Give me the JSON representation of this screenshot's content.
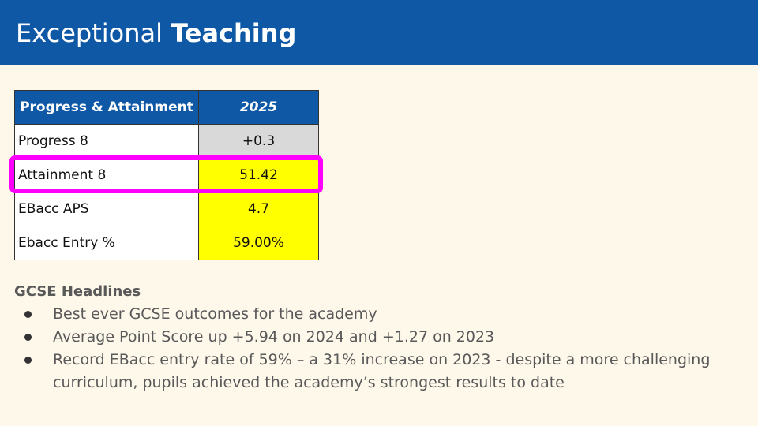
{
  "header": {
    "title_light": "Exceptional",
    "title_bold": "Teaching",
    "background": "#0f58a6"
  },
  "table": {
    "headers": [
      "Progress & Attainment",
      "2025"
    ],
    "rows": [
      {
        "label": "Progress 8",
        "value": "+0.3",
        "fill": "#d9d9d9"
      },
      {
        "label": "Attainment 8",
        "value": "51.42",
        "fill": "#ffff00"
      },
      {
        "label": "EBacc APS",
        "value": "4.7",
        "fill": "#ffff00"
      },
      {
        "label": "Ebacc Entry %",
        "value": "59.00%",
        "fill": "#ffff00"
      }
    ],
    "highlight_color": "#ff00ff"
  },
  "headlines": {
    "title": "GCSE Headlines",
    "bullets": [
      "Best ever GCSE outcomes for the academy",
      "Average Point Score up +5.94 on 2024 and +1.27 on 2023",
      "Record EBacc entry rate of 59% – a 31% increase on 2023 - despite a more challenging curriculum, pupils achieved the academy’s strongest results to date"
    ]
  }
}
